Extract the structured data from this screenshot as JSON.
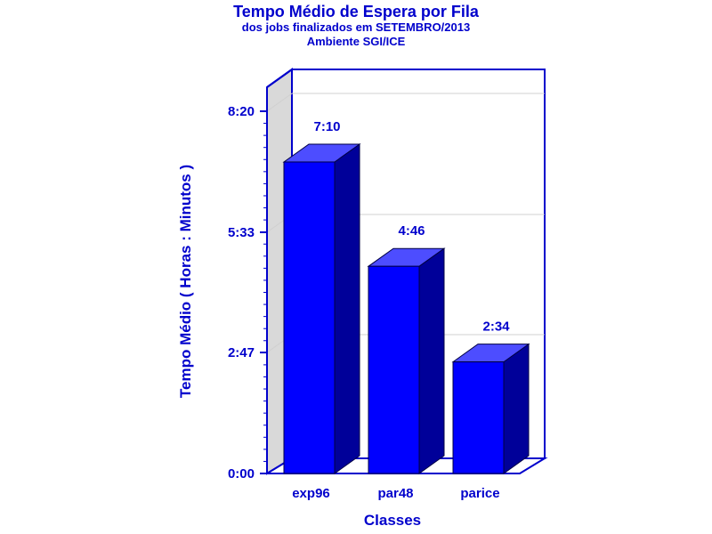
{
  "chart_data": {
    "type": "bar",
    "title": "Tempo Médio de Espera por Fila",
    "subtitle": "dos jobs finalizados em SETEMBRO/2013",
    "subtitle2": "Ambiente SGI/ICE",
    "xlabel": "Classes",
    "ylabel": "Tempo Médio ( Horas : Minutos )",
    "categories": [
      "exp96",
      "par48",
      "parice"
    ],
    "values_minutes": [
      430,
      286,
      154
    ],
    "value_labels": [
      "7:10",
      "4:46",
      "2:34"
    ],
    "yticks": [
      {
        "label": "0:00",
        "value_minutes": 0
      },
      {
        "label": "2:47",
        "value_minutes": 167
      },
      {
        "label": "5:33",
        "value_minutes": 333
      },
      {
        "label": "8:20",
        "value_minutes": 500
      }
    ],
    "ylim_minutes": [
      0,
      500
    ],
    "grid": true,
    "style": "3d",
    "colors": {
      "bar_front": "#0000ff",
      "bar_side": "#000099",
      "bar_top": "#4d4dff",
      "text": "#0000cc",
      "axis": "#0000cc",
      "wall": "#d9d9d9"
    }
  }
}
